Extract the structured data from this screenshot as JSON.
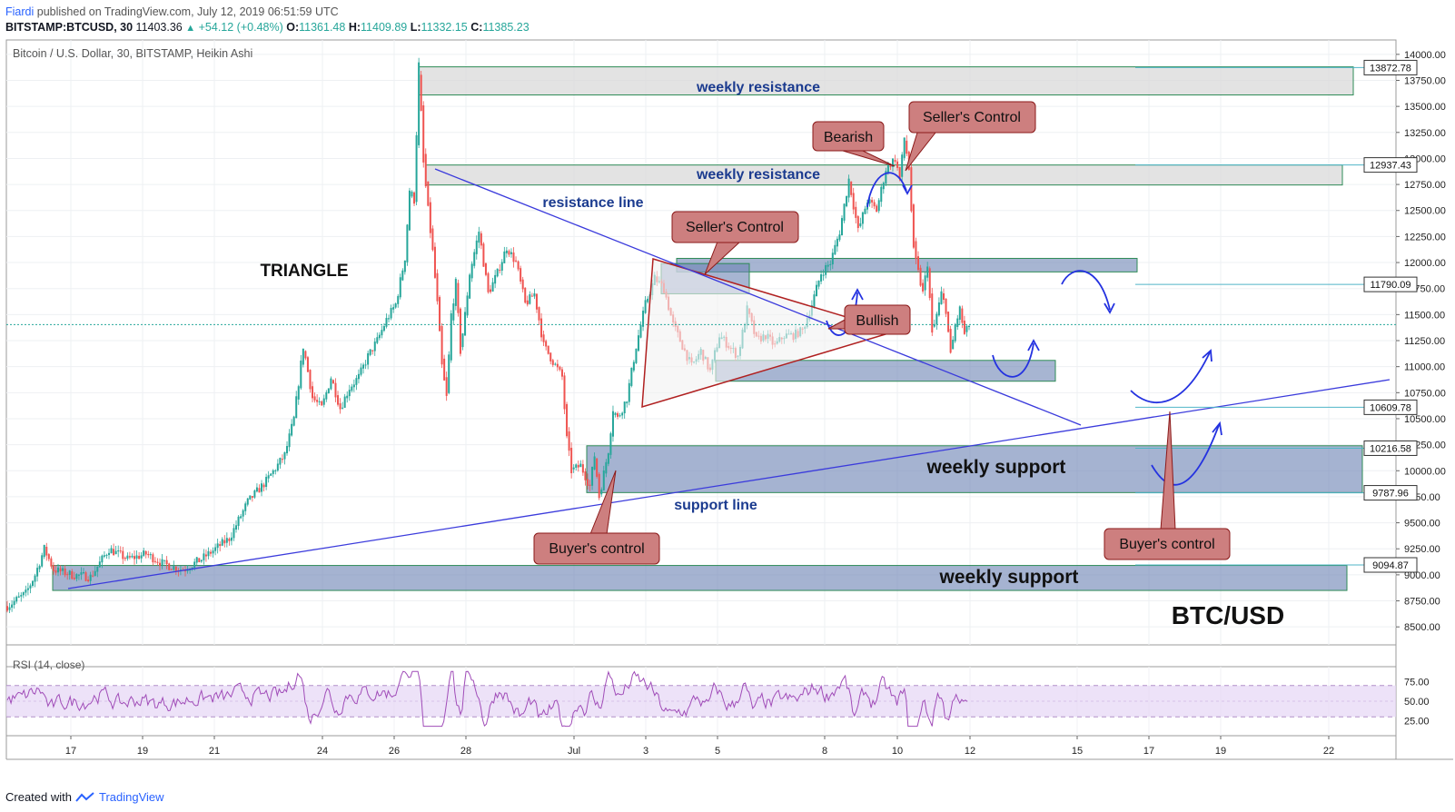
{
  "header": {
    "author": "Fiardi",
    "published": "published on TradingView.com, July 12, 2019 06:51:59 UTC"
  },
  "symbol_line": {
    "ticker": "BITSTAMP:BTCUSD, 30",
    "last": "11403.36",
    "change": "+54.12 (+0.48%)",
    "open_label": "O:",
    "open": "11361.48",
    "high_label": "H:",
    "high": "11409.89",
    "low_label": "L:",
    "low": "11332.15",
    "close_label": "C:",
    "close": "11385.23"
  },
  "footer": {
    "created_with": "Created with",
    "brand": "TradingView"
  },
  "chart_data": {
    "type": "candlestick",
    "title": "Bitcoin / U.S. Dollar, 30, BITSTAMP, Heikin Ashi",
    "x_ticks": [
      "17",
      "19",
      "21",
      "24",
      "26",
      "28",
      "Jul",
      "3",
      "5",
      "8",
      "10",
      "12",
      "15",
      "17",
      "19",
      "22"
    ],
    "y_ticks": [
      8500,
      8750,
      9000,
      9250,
      9500,
      9750,
      10000,
      10250,
      10500,
      10750,
      11000,
      11250,
      11500,
      11750,
      12000,
      12250,
      12500,
      12750,
      13000,
      13250,
      13500,
      13750,
      14000
    ],
    "y_tick_labels": [
      "8500.00",
      "8750.00",
      "9000.00",
      "9250.00",
      "9500.00",
      "9750.00",
      "10000.00",
      "10250.00",
      "10500.00",
      "10750.00",
      "11000.00",
      "11250.00",
      "11500.00",
      "11750.00",
      "12000.00",
      "12250.00",
      "12500.00",
      "12750.00",
      "13000.00",
      "13250.00",
      "13500.00",
      "13750.00",
      "14000.00"
    ],
    "ylim": [
      8320,
      14100
    ],
    "price_line": 11403.36,
    "path_points": [
      [
        0,
        8700
      ],
      [
        4,
        8820
      ],
      [
        6,
        9000
      ],
      [
        8,
        9250
      ],
      [
        10,
        9050
      ],
      [
        14,
        9000
      ],
      [
        18,
        8980
      ],
      [
        22,
        9250
      ],
      [
        26,
        9150
      ],
      [
        30,
        9200
      ],
      [
        34,
        9100
      ],
      [
        38,
        9050
      ],
      [
        42,
        9150
      ],
      [
        48,
        9350
      ],
      [
        52,
        9700
      ],
      [
        56,
        9900
      ],
      [
        60,
        10150
      ],
      [
        62,
        10500
      ],
      [
        64,
        11200
      ],
      [
        66,
        10700
      ],
      [
        68,
        10600
      ],
      [
        70,
        10900
      ],
      [
        72,
        10600
      ],
      [
        74,
        10800
      ],
      [
        76,
        10900
      ],
      [
        78,
        11100
      ],
      [
        80,
        11250
      ],
      [
        82,
        11450
      ],
      [
        84,
        11600
      ],
      [
        86,
        12050
      ],
      [
        87,
        12700
      ],
      [
        88,
        12600
      ],
      [
        89,
        13900
      ],
      [
        90,
        12950
      ],
      [
        91,
        12500
      ],
      [
        92,
        12100
      ],
      [
        93,
        11600
      ],
      [
        94,
        11000
      ],
      [
        95,
        10700
      ],
      [
        96,
        11500
      ],
      [
        97,
        11800
      ],
      [
        98,
        11150
      ],
      [
        99,
        11500
      ],
      [
        100,
        11900
      ],
      [
        102,
        12300
      ],
      [
        104,
        11700
      ],
      [
        106,
        11900
      ],
      [
        108,
        12150
      ],
      [
        110,
        12000
      ],
      [
        112,
        11600
      ],
      [
        114,
        11700
      ],
      [
        116,
        11200
      ],
      [
        118,
        11050
      ],
      [
        120,
        10900
      ],
      [
        121,
        10300
      ],
      [
        122,
        10000
      ],
      [
        124,
        10050
      ],
      [
        126,
        9850
      ],
      [
        127,
        10150
      ],
      [
        128,
        9750
      ],
      [
        130,
        10200
      ],
      [
        131,
        10600
      ],
      [
        132,
        10500
      ],
      [
        134,
        10700
      ],
      [
        136,
        11200
      ],
      [
        138,
        11600
      ],
      [
        140,
        11850
      ],
      [
        142,
        11750
      ],
      [
        144,
        11400
      ],
      [
        146,
        11200
      ],
      [
        148,
        11000
      ],
      [
        150,
        11150
      ],
      [
        152,
        10950
      ],
      [
        154,
        11300
      ],
      [
        156,
        11200
      ],
      [
        158,
        11100
      ],
      [
        160,
        11550
      ],
      [
        162,
        11250
      ],
      [
        164,
        11300
      ],
      [
        166,
        11200
      ],
      [
        168,
        11300
      ],
      [
        170,
        11300
      ],
      [
        172,
        11350
      ],
      [
        174,
        11600
      ],
      [
        176,
        11900
      ],
      [
        178,
        12000
      ],
      [
        180,
        12300
      ],
      [
        182,
        12800
      ],
      [
        184,
        12300
      ],
      [
        186,
        12600
      ],
      [
        188,
        12500
      ],
      [
        190,
        12900
      ],
      [
        192,
        13000
      ],
      [
        193,
        12800
      ],
      [
        194,
        13200
      ],
      [
        195,
        12900
      ],
      [
        196,
        12100
      ],
      [
        197,
        11900
      ],
      [
        198,
        11700
      ],
      [
        199,
        12000
      ],
      [
        200,
        11300
      ],
      [
        202,
        11700
      ],
      [
        203,
        11550
      ],
      [
        204,
        11100
      ],
      [
        205,
        11400
      ],
      [
        206,
        11550
      ],
      [
        207,
        11300
      ],
      [
        208,
        11400
      ]
    ],
    "rsi": {
      "label": "RSI (14, close)",
      "ticks": [
        25,
        50,
        75
      ],
      "tick_labels": [
        "25.00",
        "50.00",
        "75.00"
      ],
      "upper": 70,
      "lower": 30,
      "mid": 50
    }
  },
  "price_tags": [
    {
      "value": 13872.78,
      "label": "13872.78"
    },
    {
      "value": 12937.43,
      "label": "12937.43"
    },
    {
      "value": 11790.09,
      "label": "11790.09"
    },
    {
      "value": 10609.78,
      "label": "10609.78"
    },
    {
      "value": 10216.58,
      "label": "10216.58"
    },
    {
      "value": 9787.96,
      "label": "9787.96"
    },
    {
      "value": 9094.87,
      "label": "9094.87"
    }
  ],
  "annotations": {
    "weekly_resistance_1": "weekly resistance",
    "weekly_resistance_2": "weekly resistance",
    "resistance_line": "resistance line",
    "support_line": "support line",
    "weekly_support_1": "weekly support",
    "weekly_support_2": "weekly support",
    "triangle": "TRIANGLE",
    "pair": "BTC/USD",
    "bearish": "Bearish",
    "sellers_control_1": "Seller's Control",
    "sellers_control_2": "Seller's Control",
    "bullish": "Bullish",
    "buyers_control_1": "Buyer's control",
    "buyers_control_2": "Buyer's control"
  },
  "colors": {
    "up": "#26a69a",
    "down": "#ef5350",
    "zone_grey": "#d9d9d9",
    "zone_blue": "#6d84b4",
    "zone_border": "#2e8b57",
    "callout_fill": "#cd7f7f",
    "callout_border": "#8b1a1a",
    "trendline": "#3b3bdc",
    "label_blue": "#1b3b8f",
    "rsi": "#a04cb8",
    "rsi_band": "#e6d5f5"
  }
}
